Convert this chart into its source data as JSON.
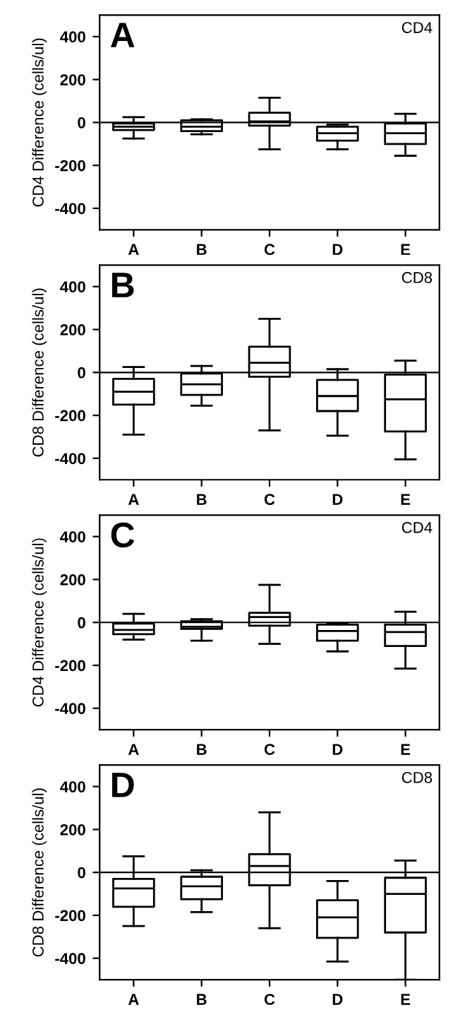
{
  "chart_data": [
    {
      "type": "box",
      "title": "CD4",
      "ylabel": "CD4 Difference (cells/ul)",
      "annotations": [
        "A"
      ],
      "categories": [
        "A",
        "B",
        "C",
        "D",
        "E"
      ],
      "ylim": [
        -500,
        500
      ],
      "yticks": [
        -400,
        -200,
        0,
        200,
        400
      ],
      "ref_lines": [
        {
          "axis": "y",
          "value": 0
        }
      ],
      "boxes": [
        {
          "low": -75,
          "q1": -35,
          "median": -20,
          "q3": -5,
          "high": 25
        },
        {
          "low": -55,
          "q1": -40,
          "median": -20,
          "q3": 10,
          "high": 15
        },
        {
          "low": -125,
          "q1": -15,
          "median": 5,
          "q3": 45,
          "high": 115
        },
        {
          "low": -125,
          "q1": -85,
          "median": -50,
          "q3": -20,
          "high": -10
        },
        {
          "low": -155,
          "q1": -100,
          "median": -50,
          "q3": -5,
          "high": 40
        }
      ]
    },
    {
      "type": "box",
      "title": "CD8",
      "ylabel": "CD8 Difference (cells/ul)",
      "annotations": [
        "B"
      ],
      "categories": [
        "A",
        "B",
        "C",
        "D",
        "E"
      ],
      "ylim": [
        -500,
        500
      ],
      "yticks": [
        -400,
        -200,
        0,
        200,
        400
      ],
      "ref_lines": [
        {
          "axis": "y",
          "value": 0
        }
      ],
      "boxes": [
        {
          "low": -290,
          "q1": -150,
          "median": -90,
          "q3": -30,
          "high": 25
        },
        {
          "low": -155,
          "q1": -105,
          "median": -55,
          "q3": -5,
          "high": 30
        },
        {
          "low": -270,
          "q1": -20,
          "median": 45,
          "q3": 120,
          "high": 250
        },
        {
          "low": -295,
          "q1": -180,
          "median": -110,
          "q3": -35,
          "high": 15
        },
        {
          "low": -405,
          "q1": -275,
          "median": -125,
          "q3": -10,
          "high": 55
        }
      ]
    },
    {
      "type": "box",
      "title": "CD4",
      "ylabel": "CD4 Difference (cells/ul)",
      "annotations": [
        "C"
      ],
      "categories": [
        "A",
        "B",
        "C",
        "D",
        "E"
      ],
      "ylim": [
        -500,
        500
      ],
      "yticks": [
        -400,
        -200,
        0,
        200,
        400
      ],
      "ref_lines": [
        {
          "axis": "y",
          "value": 0
        }
      ],
      "boxes": [
        {
          "low": -80,
          "q1": -55,
          "median": -35,
          "q3": -5,
          "high": 40
        },
        {
          "low": -85,
          "q1": -30,
          "median": -20,
          "q3": 5,
          "high": 15
        },
        {
          "low": -100,
          "q1": -15,
          "median": 25,
          "q3": 45,
          "high": 175
        },
        {
          "low": -135,
          "q1": -85,
          "median": -40,
          "q3": -10,
          "high": -5
        },
        {
          "low": -215,
          "q1": -110,
          "median": -45,
          "q3": -10,
          "high": 50
        }
      ]
    },
    {
      "type": "box",
      "title": "CD8",
      "ylabel": "CD8 Difference (cells/ul)",
      "annotations": [
        "D"
      ],
      "categories": [
        "A",
        "B",
        "C",
        "D",
        "E"
      ],
      "ylim": [
        -500,
        500
      ],
      "yticks": [
        -400,
        -200,
        0,
        200,
        400
      ],
      "ref_lines": [
        {
          "axis": "y",
          "value": 0
        }
      ],
      "boxes": [
        {
          "low": -250,
          "q1": -160,
          "median": -75,
          "q3": -30,
          "high": 75
        },
        {
          "low": -185,
          "q1": -125,
          "median": -65,
          "q3": -20,
          "high": 10
        },
        {
          "low": -260,
          "q1": -60,
          "median": 30,
          "q3": 85,
          "high": 280
        },
        {
          "low": -415,
          "q1": -305,
          "median": -210,
          "q3": -130,
          "high": -40
        },
        {
          "low": -500,
          "q1": -280,
          "median": -100,
          "q3": -25,
          "high": 55
        }
      ]
    }
  ]
}
